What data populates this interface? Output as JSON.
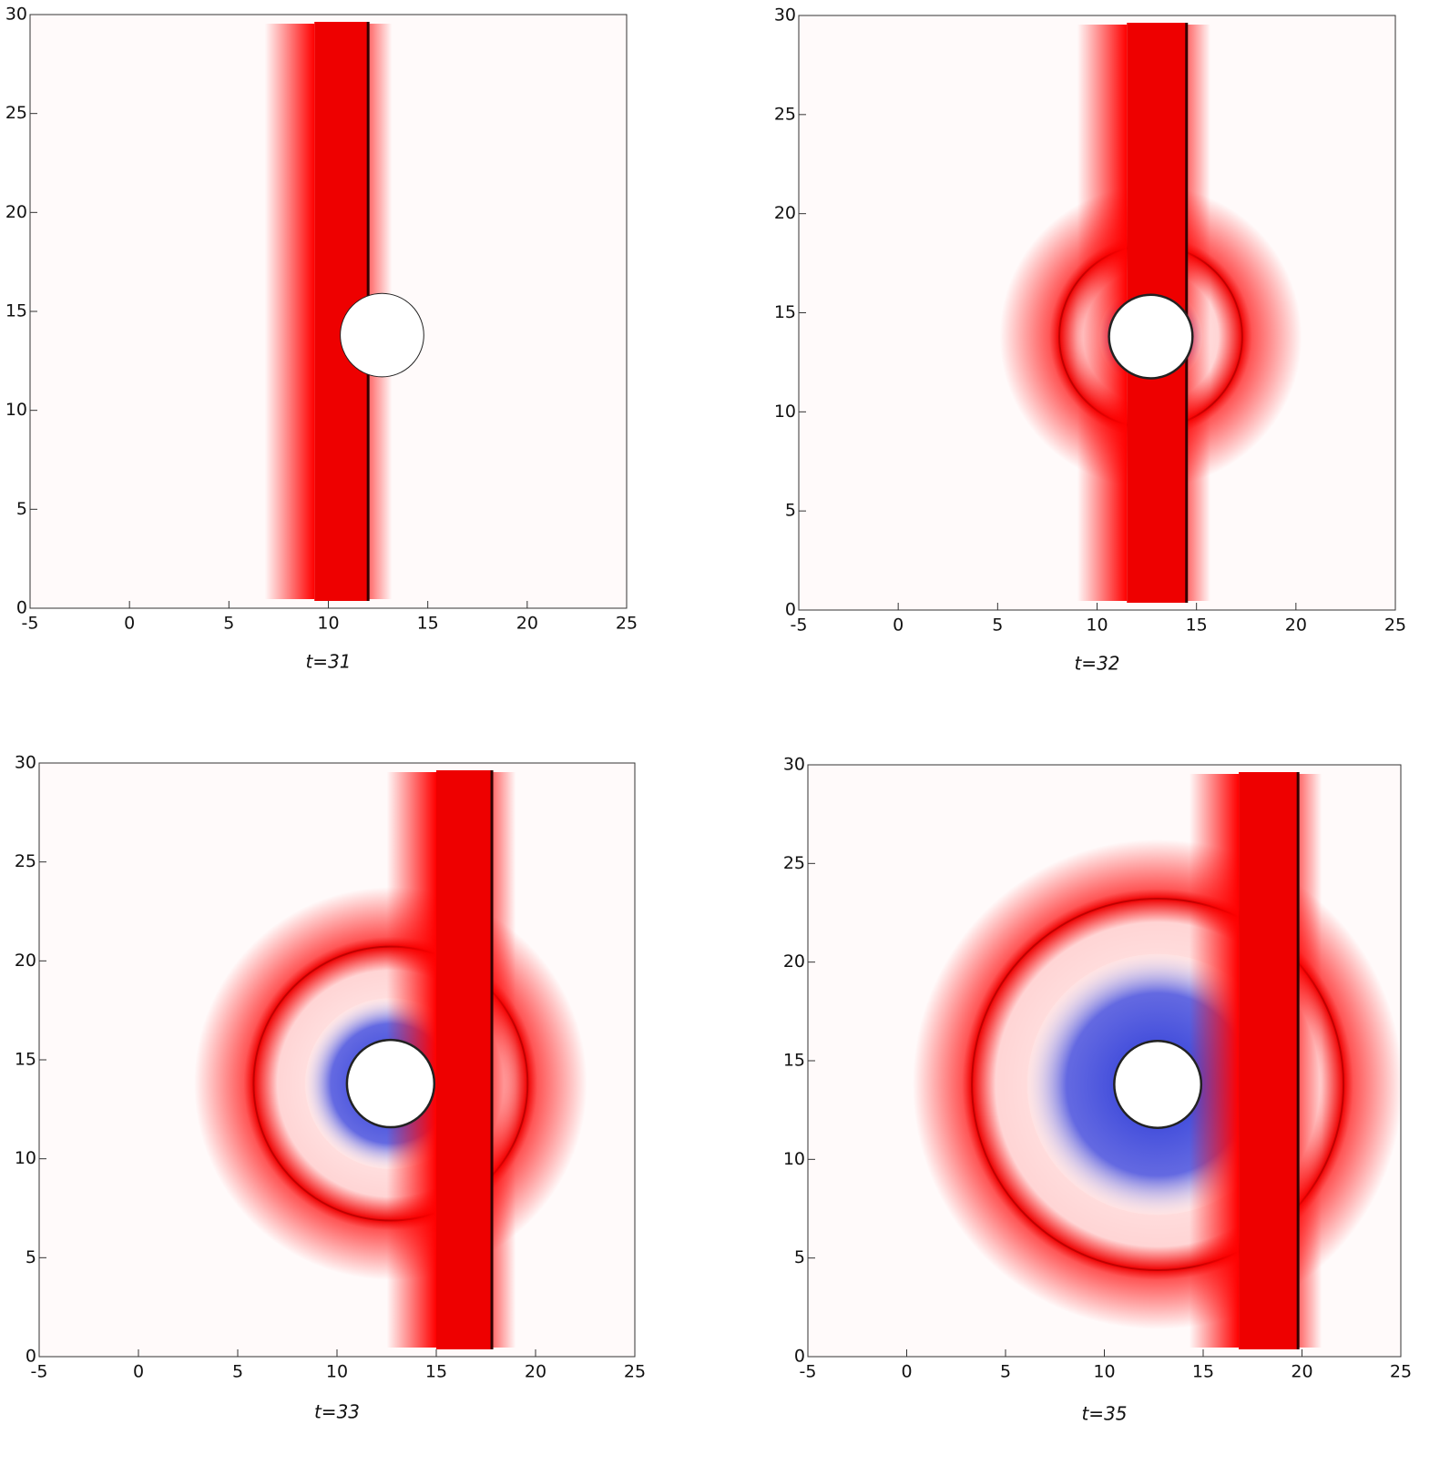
{
  "chart_data": [
    {
      "type": "field",
      "title": "t=31",
      "xlim": [
        -5,
        25
      ],
      "ylim": [
        0,
        30
      ],
      "xticks": [
        -5,
        0,
        5,
        10,
        15,
        20,
        25
      ],
      "yticks": [
        0,
        5,
        10,
        15,
        20,
        25,
        30
      ],
      "band": [
        9.3,
        12
      ],
      "obstacle": {
        "x": 12.7,
        "y": 13.8,
        "r": 2.1
      }
    },
    {
      "type": "field",
      "title": "t=32",
      "xlim": [
        -5,
        25
      ],
      "ylim": [
        0,
        30
      ],
      "xticks": [
        -5,
        0,
        5,
        10,
        15,
        20,
        25
      ],
      "yticks": [
        0,
        5,
        10,
        15,
        20,
        25,
        30
      ],
      "band": [
        11.5,
        14.5
      ],
      "obstacle": {
        "x": 12.7,
        "y": 13.8,
        "r": 2.1
      },
      "ring": 4.6,
      "blue": 2.6
    },
    {
      "type": "field",
      "title": "t=33",
      "xlim": [
        -5,
        25
      ],
      "ylim": [
        0,
        30
      ],
      "xticks": [
        -5,
        0,
        5,
        10,
        15,
        20,
        25
      ],
      "yticks": [
        0,
        5,
        10,
        15,
        20,
        25,
        30
      ],
      "band": [
        15,
        17.8
      ],
      "obstacle": {
        "x": 12.7,
        "y": 13.8,
        "r": 2.2
      },
      "ring": 6.9,
      "blue": 4.3
    },
    {
      "type": "field",
      "title": "t=35",
      "xlim": [
        -5,
        25
      ],
      "ylim": [
        0,
        30
      ],
      "xticks": [
        -5,
        0,
        5,
        10,
        15,
        20,
        25
      ],
      "yticks": [
        0,
        5,
        10,
        15,
        20,
        25,
        30
      ],
      "band": [
        16.8,
        19.8
      ],
      "obstacle": {
        "x": 12.7,
        "y": 13.8,
        "r": 2.2
      },
      "ring": 9.4,
      "blue": 6.6
    }
  ]
}
